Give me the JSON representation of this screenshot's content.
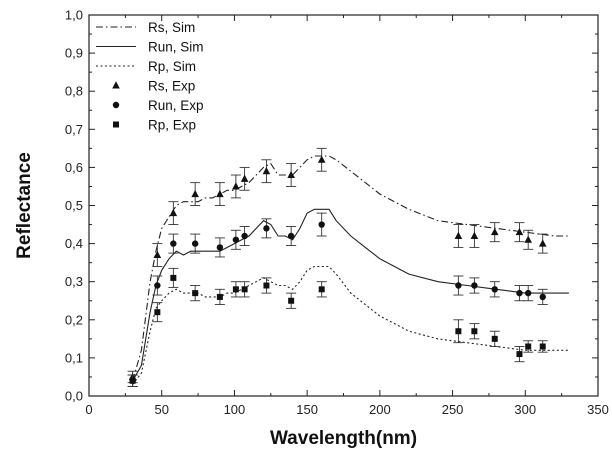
{
  "chart_data": {
    "type": "line",
    "xlabel": "Wavelength(nm)",
    "ylabel": "Reflectance",
    "xlim": [
      0,
      350
    ],
    "ylim": [
      0.0,
      1.0
    ],
    "x_ticks": [
      0,
      50,
      100,
      150,
      200,
      250,
      300,
      350
    ],
    "x_tick_labels": [
      "0",
      "50",
      "100",
      "150",
      "200",
      "250",
      "300",
      "350"
    ],
    "y_ticks": [
      0.0,
      0.1,
      0.2,
      0.3,
      0.4,
      0.5,
      0.6,
      0.7,
      0.8,
      0.9,
      1.0
    ],
    "y_tick_labels": [
      "0,0",
      "0,1",
      "0,2",
      "0,3",
      "0,4",
      "0,5",
      "0,6",
      "0,7",
      "0,8",
      "0,9",
      "1,0"
    ],
    "grid": false,
    "legend_position": "top-left",
    "series": [
      {
        "name": "Rs, Sim",
        "kind": "line",
        "dash": "dashdot",
        "color": "#222222",
        "x": [
          30,
          36,
          42,
          46,
          50,
          55,
          60,
          65,
          70,
          75,
          80,
          85,
          90,
          95,
          100,
          105,
          110,
          115,
          120,
          125,
          130,
          135,
          140,
          145,
          150,
          155,
          160,
          165,
          170,
          180,
          190,
          200,
          220,
          240,
          260,
          280,
          300,
          320,
          330
        ],
        "y": [
          0.04,
          0.12,
          0.3,
          0.38,
          0.44,
          0.47,
          0.5,
          0.51,
          0.51,
          0.51,
          0.52,
          0.52,
          0.53,
          0.54,
          0.54,
          0.55,
          0.56,
          0.58,
          0.6,
          0.61,
          0.58,
          0.58,
          0.58,
          0.6,
          0.62,
          0.63,
          0.63,
          0.63,
          0.62,
          0.59,
          0.56,
          0.53,
          0.49,
          0.46,
          0.45,
          0.44,
          0.43,
          0.42,
          0.42
        ]
      },
      {
        "name": "Run, Sim",
        "kind": "line",
        "dash": "solid",
        "color": "#222222",
        "x": [
          30,
          36,
          42,
          46,
          50,
          55,
          60,
          65,
          70,
          75,
          80,
          85,
          90,
          95,
          100,
          105,
          110,
          115,
          120,
          125,
          130,
          135,
          140,
          145,
          150,
          155,
          160,
          165,
          170,
          180,
          190,
          200,
          220,
          240,
          260,
          280,
          300,
          320,
          330
        ],
        "y": [
          0.04,
          0.08,
          0.22,
          0.29,
          0.33,
          0.36,
          0.38,
          0.37,
          0.38,
          0.38,
          0.38,
          0.38,
          0.38,
          0.39,
          0.4,
          0.41,
          0.42,
          0.44,
          0.46,
          0.45,
          0.42,
          0.42,
          0.41,
          0.44,
          0.48,
          0.49,
          0.49,
          0.49,
          0.46,
          0.42,
          0.39,
          0.36,
          0.32,
          0.3,
          0.29,
          0.28,
          0.27,
          0.27,
          0.27
        ]
      },
      {
        "name": "Rp, Sim",
        "kind": "line",
        "dash": "dotted",
        "color": "#222222",
        "x": [
          30,
          36,
          42,
          46,
          50,
          55,
          60,
          65,
          70,
          75,
          80,
          85,
          90,
          95,
          100,
          105,
          110,
          115,
          120,
          125,
          130,
          135,
          140,
          145,
          150,
          155,
          160,
          165,
          170,
          180,
          190,
          200,
          220,
          240,
          260,
          280,
          300,
          320,
          330
        ],
        "y": [
          0.03,
          0.06,
          0.17,
          0.23,
          0.25,
          0.27,
          0.28,
          0.27,
          0.27,
          0.27,
          0.26,
          0.26,
          0.26,
          0.27,
          0.27,
          0.28,
          0.29,
          0.3,
          0.31,
          0.3,
          0.29,
          0.29,
          0.28,
          0.3,
          0.33,
          0.34,
          0.34,
          0.34,
          0.32,
          0.27,
          0.24,
          0.21,
          0.17,
          0.15,
          0.14,
          0.13,
          0.12,
          0.12,
          0.12
        ]
      },
      {
        "name": "Rs, Exp",
        "kind": "markers",
        "marker": "triangle",
        "color": "#111111",
        "x": [
          30,
          47,
          58,
          73,
          90,
          101,
          107,
          122,
          139,
          160,
          254,
          265,
          279,
          296,
          302,
          312
        ],
        "y": [
          0.05,
          0.37,
          0.48,
          0.53,
          0.53,
          0.55,
          0.57,
          0.59,
          0.58,
          0.62,
          0.42,
          0.42,
          0.43,
          0.43,
          0.41,
          0.4
        ],
        "err": [
          0.015,
          0.03,
          0.03,
          0.03,
          0.03,
          0.03,
          0.03,
          0.03,
          0.03,
          0.03,
          0.03,
          0.03,
          0.025,
          0.025,
          0.025,
          0.025
        ]
      },
      {
        "name": "Run, Exp",
        "kind": "markers",
        "marker": "circle",
        "color": "#111111",
        "x": [
          30,
          47,
          58,
          73,
          90,
          101,
          107,
          122,
          139,
          160,
          254,
          265,
          279,
          296,
          302,
          312
        ],
        "y": [
          0.04,
          0.29,
          0.4,
          0.4,
          0.39,
          0.41,
          0.42,
          0.44,
          0.42,
          0.45,
          0.29,
          0.29,
          0.28,
          0.27,
          0.27,
          0.26
        ],
        "err": [
          0.015,
          0.025,
          0.025,
          0.025,
          0.025,
          0.025,
          0.025,
          0.025,
          0.025,
          0.03,
          0.025,
          0.02,
          0.02,
          0.02,
          0.02,
          0.02
        ]
      },
      {
        "name": "Rp, Exp",
        "kind": "markers",
        "marker": "square",
        "color": "#111111",
        "x": [
          30,
          47,
          58,
          73,
          90,
          101,
          107,
          122,
          139,
          160,
          254,
          265,
          279,
          296,
          302,
          312
        ],
        "y": [
          0.04,
          0.22,
          0.31,
          0.27,
          0.26,
          0.28,
          0.28,
          0.29,
          0.25,
          0.28,
          0.17,
          0.17,
          0.15,
          0.11,
          0.13,
          0.13
        ],
        "err": [
          0.015,
          0.025,
          0.025,
          0.02,
          0.02,
          0.02,
          0.02,
          0.02,
          0.02,
          0.02,
          0.03,
          0.02,
          0.02,
          0.02,
          0.015,
          0.015
        ]
      }
    ]
  }
}
